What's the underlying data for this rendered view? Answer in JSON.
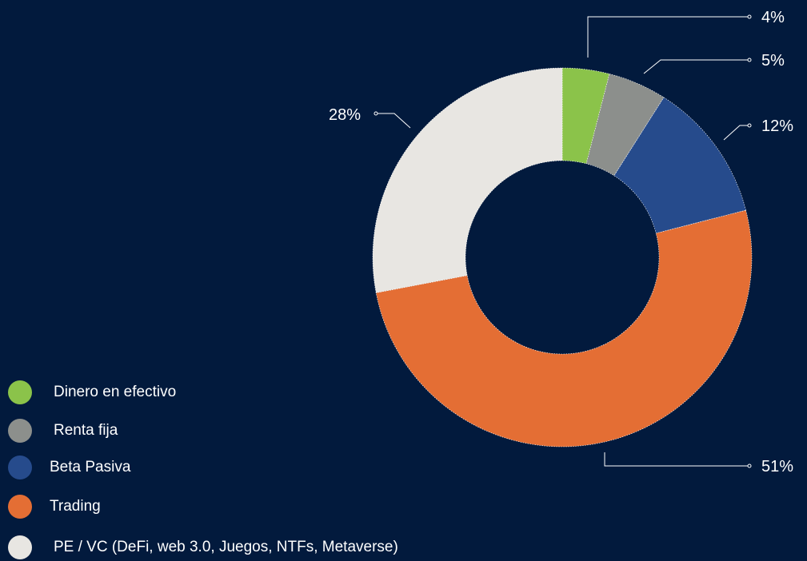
{
  "chart_data": {
    "type": "pie",
    "variant": "donut",
    "slices": [
      {
        "label": "Dinero en efectivo",
        "value": 4,
        "display": "4%",
        "color": "#8bc34a"
      },
      {
        "label": "Renta fija",
        "value": 5,
        "display": "5%",
        "color": "#8c8f8c"
      },
      {
        "label": "Beta Pasiva",
        "value": 12,
        "display": "12%",
        "color": "#264b8c"
      },
      {
        "label": "Trading",
        "value": 51,
        "display": "51%",
        "color": "#e46e34"
      },
      {
        "label": "PE / VC (DeFi, web 3.0, Juegos, NTFs, Metaverse)",
        "value": 28,
        "display": "28%",
        "color": "#e8e6e2"
      }
    ],
    "legend_position": "bottom-left",
    "background": "#021a3d"
  }
}
